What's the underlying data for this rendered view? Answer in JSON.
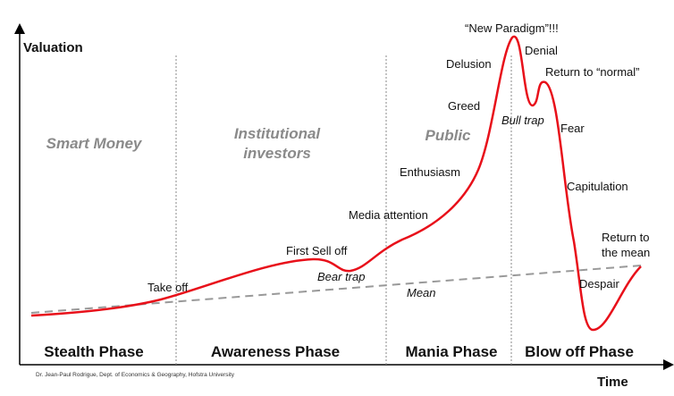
{
  "axes": {
    "y": "Valuation",
    "x": "Time"
  },
  "groups": [
    [
      "Smart Money"
    ],
    [
      "Institutional",
      "investors"
    ],
    [
      "Public"
    ]
  ],
  "phases": [
    "Stealth Phase",
    "Awareness Phase",
    "Mania Phase",
    "Blow off Phase"
  ],
  "stages": {
    "take_off": "Take off",
    "first_sell_off": "First Sell off",
    "bear_trap": "Bear trap",
    "media_attention": "Media attention",
    "enthusiasm": "Enthusiasm",
    "greed": "Greed",
    "delusion": "Delusion",
    "new_paradigm": "“New Paradigm”!!!",
    "denial": "Denial",
    "bull_trap": "Bull trap",
    "return_to_normal": "Return to “normal”",
    "fear": "Fear",
    "capitulation": "Capitulation",
    "despair": "Despair",
    "return_to_mean": [
      "Return to",
      "the mean"
    ]
  },
  "mean": "Mean",
  "credit": "Dr. Jean-Paul Rodrigue, Dept. of Economics & Geography, Hofstra University"
}
